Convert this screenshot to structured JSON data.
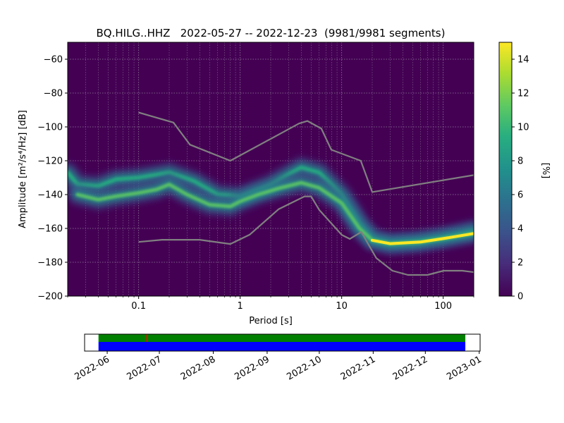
{
  "chart_data": [
    {
      "type": "heatmap",
      "title": "BQ.HILG..HHZ   2022-05-27 -- 2022-12-23  (9981/9981 segments)",
      "xlabel": "Period [s]",
      "ylabel": "Amplitude [m²/s⁴/Hz] [dB]",
      "x_scale": "log",
      "xlim": [
        0.02,
        200
      ],
      "ylim": [
        -200,
        -50
      ],
      "x_ticks": [
        0.1,
        1,
        10,
        100
      ],
      "x_tick_labels": [
        "0.1",
        "1",
        "10",
        "100"
      ],
      "y_ticks": [
        -200,
        -180,
        -160,
        -140,
        -120,
        -100,
        -80,
        -60
      ],
      "y_tick_labels": [
        "−200",
        "−180",
        "−160",
        "−140",
        "−120",
        "−100",
        "−80",
        "−60"
      ],
      "grid": true,
      "colormap": "viridis",
      "colorbar": {
        "label": "[%]",
        "range": [
          0,
          15
        ],
        "ticks": [
          0,
          2,
          4,
          6,
          8,
          10,
          12,
          14
        ],
        "tick_labels": [
          "0",
          "2",
          "4",
          "6",
          "8",
          "10",
          "12",
          "14"
        ]
      },
      "density_ridges": [
        {
          "points": [
            [
              0.02,
              -127
            ],
            [
              0.025,
              -134
            ],
            [
              0.04,
              -135
            ],
            [
              0.06,
              -131
            ],
            [
              0.1,
              -130
            ],
            [
              0.2,
              -127
            ],
            [
              0.35,
              -132
            ],
            [
              0.6,
              -140
            ],
            [
              1,
              -141
            ],
            [
              2,
              -134
            ],
            [
              3,
              -128
            ],
            [
              4,
              -124
            ],
            [
              6,
              -127
            ],
            [
              10,
              -140
            ],
            [
              15,
              -157
            ],
            [
              20,
              -166
            ],
            [
              30,
              -169
            ],
            [
              50,
              -168
            ],
            [
              100,
              -165
            ],
            [
              200,
              -161
            ]
          ],
          "peak_percent": 8
        },
        {
          "points": [
            [
              0.025,
              -140
            ],
            [
              0.04,
              -143
            ],
            [
              0.06,
              -141
            ],
            [
              0.1,
              -139
            ],
            [
              0.15,
              -137
            ],
            [
              0.2,
              -134
            ],
            [
              0.3,
              -140
            ],
            [
              0.5,
              -146
            ],
            [
              0.8,
              -147
            ],
            [
              1,
              -144
            ],
            [
              1.5,
              -140
            ],
            [
              2.5,
              -136
            ],
            [
              4,
              -133
            ],
            [
              6,
              -136
            ],
            [
              10,
              -145
            ],
            [
              15,
              -160
            ],
            [
              20,
              -167
            ],
            [
              30,
              -169
            ],
            [
              60,
              -168
            ],
            [
              100,
              -166
            ],
            [
              200,
              -163
            ]
          ],
          "peak_percent": 12
        }
      ],
      "noise_models": [
        {
          "name": "NHNM",
          "x": [
            0.1,
            0.22,
            0.32,
            0.8,
            3.8,
            4.6,
            6.3,
            7.9,
            15.4,
            20,
            354.8
          ],
          "y": [
            -91.5,
            -97.4,
            -110.5,
            -120,
            -98,
            -96.5,
            -101,
            -113.5,
            -120,
            -138.5,
            -126
          ]
        },
        {
          "name": "NLNM",
          "x": [
            0.1,
            0.17,
            0.4,
            0.8,
            1.24,
            2.4,
            4.3,
            5,
            6,
            10,
            12,
            15.6,
            21.9,
            31.6,
            45,
            70,
            101,
            154,
            328
          ],
          "y": [
            -168,
            -166.7,
            -166.7,
            -169.2,
            -163.7,
            -148.6,
            -141.1,
            -141.1,
            -149,
            -163.8,
            -166.2,
            -162.1,
            -177.5,
            -185,
            -187.5,
            -187.5,
            -185,
            -185,
            -187.5
          ]
        }
      ]
    },
    {
      "type": "timeline",
      "x_ticks": [
        "2022-06",
        "2022-07",
        "2022-08",
        "2022-09",
        "2022-10",
        "2022-11",
        "2022-12",
        "2023-01"
      ],
      "start": "2022-05-27",
      "end": "2022-12-23",
      "colors": {
        "upper": "#008000",
        "lower": "#0000ff",
        "marker": "#ff0000"
      },
      "marker_date": "2022-06-23"
    }
  ]
}
